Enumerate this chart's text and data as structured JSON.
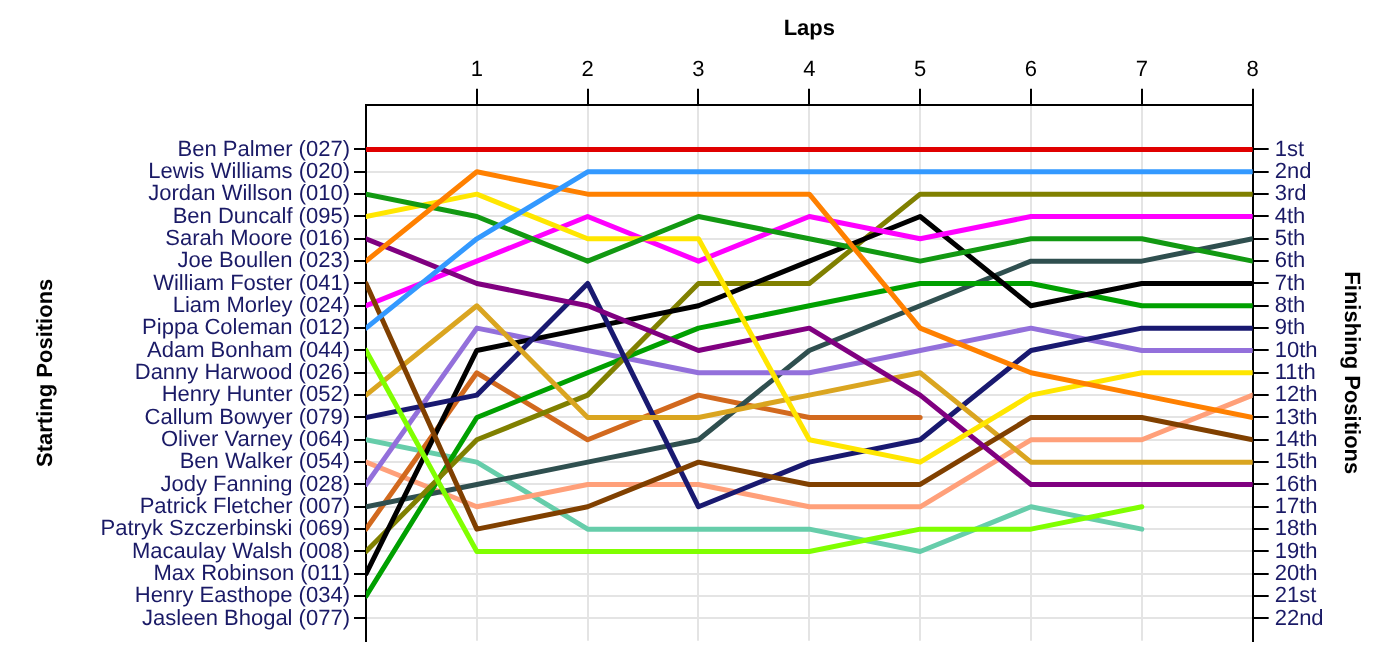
{
  "chart_data": {
    "type": "line",
    "xlabel": "Laps",
    "ylabel": "Finishing Positions",
    "x": [
      0,
      1,
      2,
      3,
      4,
      5,
      6,
      7,
      8
    ],
    "xlim": [
      0,
      8
    ],
    "xticks": [
      1,
      2,
      3,
      4,
      5,
      6,
      7,
      8
    ],
    "annotations": [
      "Ben Palmer (027)",
      "Lewis Williams (020)",
      "Jordan Willson (010)",
      "Ben Duncalf (095)",
      "Sarah Moore (016)",
      "Joe Boullen (023)",
      "William Foster (041)",
      "Liam Morley (024)",
      "Pippa Coleman (012)",
      "Adam Bonham (044)",
      "Danny Harwood (026)",
      "Henry Hunter (052)",
      "Callum Bowyer (079)",
      "Oliver Varney (064)",
      "Ben Walker (054)",
      "Jody Fanning (028)",
      "Patrick Fletcher (007)",
      "Patryk Szczerbinski (069)",
      "Macaulay Walsh (008)",
      "Max Robinson (011)",
      "Henry Easthope (034)",
      "Jasleen Bhogal (077)",
      "Starting Positions"
    ],
    "ylim": [
      23,
      -1
    ],
    "yticks": [
      {
        "value": 1,
        "label": "1st"
      },
      {
        "value": 2,
        "label": "2nd"
      },
      {
        "value": 3,
        "label": "3rd"
      },
      {
        "value": 4,
        "label": "4th"
      },
      {
        "value": 5,
        "label": "5th"
      },
      {
        "value": 6,
        "label": "6th"
      },
      {
        "value": 7,
        "label": "7th"
      },
      {
        "value": 8,
        "label": "8th"
      },
      {
        "value": 9,
        "label": "9th"
      },
      {
        "value": 10,
        "label": "10th"
      },
      {
        "value": 11,
        "label": "11th"
      },
      {
        "value": 12,
        "label": "12th"
      },
      {
        "value": 13,
        "label": "13th"
      },
      {
        "value": 14,
        "label": "14th"
      },
      {
        "value": 15,
        "label": "15th"
      },
      {
        "value": 16,
        "label": "16th"
      },
      {
        "value": 17,
        "label": "17th"
      },
      {
        "value": 18,
        "label": "18th"
      },
      {
        "value": 19,
        "label": "19th"
      },
      {
        "value": 20,
        "label": "20th"
      },
      {
        "value": 21,
        "label": "21st"
      },
      {
        "value": 22,
        "label": "22nd"
      }
    ],
    "grid": true,
    "legend": false,
    "marker": "none",
    "line_style": "solid",
    "series": [
      {
        "color": "#e00000",
        "values": [
          1,
          1,
          1,
          1,
          1,
          1,
          1,
          1,
          1
        ]
      },
      {
        "color": "#3399ff",
        "values": [
          9,
          5,
          2,
          2,
          2,
          2,
          2,
          2,
          2
        ]
      },
      {
        "color": "#ff8000",
        "values": [
          6,
          2,
          3,
          3,
          3,
          9,
          11,
          12,
          13
        ]
      },
      {
        "color": "#129912",
        "values": [
          3,
          4,
          6,
          4,
          5,
          6,
          5,
          5,
          6
        ]
      },
      {
        "color": "#ffe600",
        "values": [
          4,
          3,
          5,
          5,
          14,
          15,
          12,
          11,
          11
        ]
      },
      {
        "color": "#800080",
        "values": [
          5,
          7,
          8,
          10,
          9,
          12,
          16,
          16,
          16
        ]
      },
      {
        "color": "#804000",
        "values": [
          7,
          18,
          17,
          15,
          16,
          16,
          13,
          13,
          14
        ]
      },
      {
        "color": "#ff00ff",
        "values": [
          8,
          6,
          4,
          6,
          4,
          5,
          4,
          4,
          4
        ]
      },
      {
        "color": "#80ff00",
        "values": [
          10,
          19,
          19,
          19,
          19,
          18,
          18,
          17,
          null
        ]
      },
      {
        "color": "#daa520",
        "values": [
          12,
          8,
          13,
          13,
          12,
          11,
          15,
          15,
          15
        ]
      },
      {
        "color": "#191970",
        "values": [
          13,
          12,
          7,
          17,
          15,
          14,
          10,
          9,
          9
        ]
      },
      {
        "color": "#000000",
        "values": [
          20,
          10,
          9,
          8,
          6,
          4,
          8,
          7,
          7
        ]
      },
      {
        "color": "#808000",
        "values": [
          19,
          14,
          12,
          7,
          7,
          3,
          3,
          3,
          3
        ]
      },
      {
        "color": "#00a000",
        "values": [
          21,
          13,
          11,
          9,
          8,
          7,
          7,
          8,
          8
        ]
      },
      {
        "color": "#9370db",
        "values": [
          16,
          9,
          10,
          11,
          11,
          10,
          9,
          10,
          10
        ]
      },
      {
        "color": "#2f4f4f",
        "values": [
          17,
          16,
          15,
          14,
          10,
          8,
          6,
          6,
          5
        ]
      },
      {
        "color": "#d2691e",
        "values": [
          18,
          11,
          14,
          12,
          13,
          13,
          null,
          null,
          null
        ]
      },
      {
        "color": "#ffa07a",
        "values": [
          15,
          17,
          16,
          16,
          17,
          17,
          14,
          14,
          12
        ]
      },
      {
        "color": "#66cdaa",
        "values": [
          14,
          15,
          18,
          18,
          18,
          19,
          17,
          18,
          null
        ]
      }
    ]
  }
}
